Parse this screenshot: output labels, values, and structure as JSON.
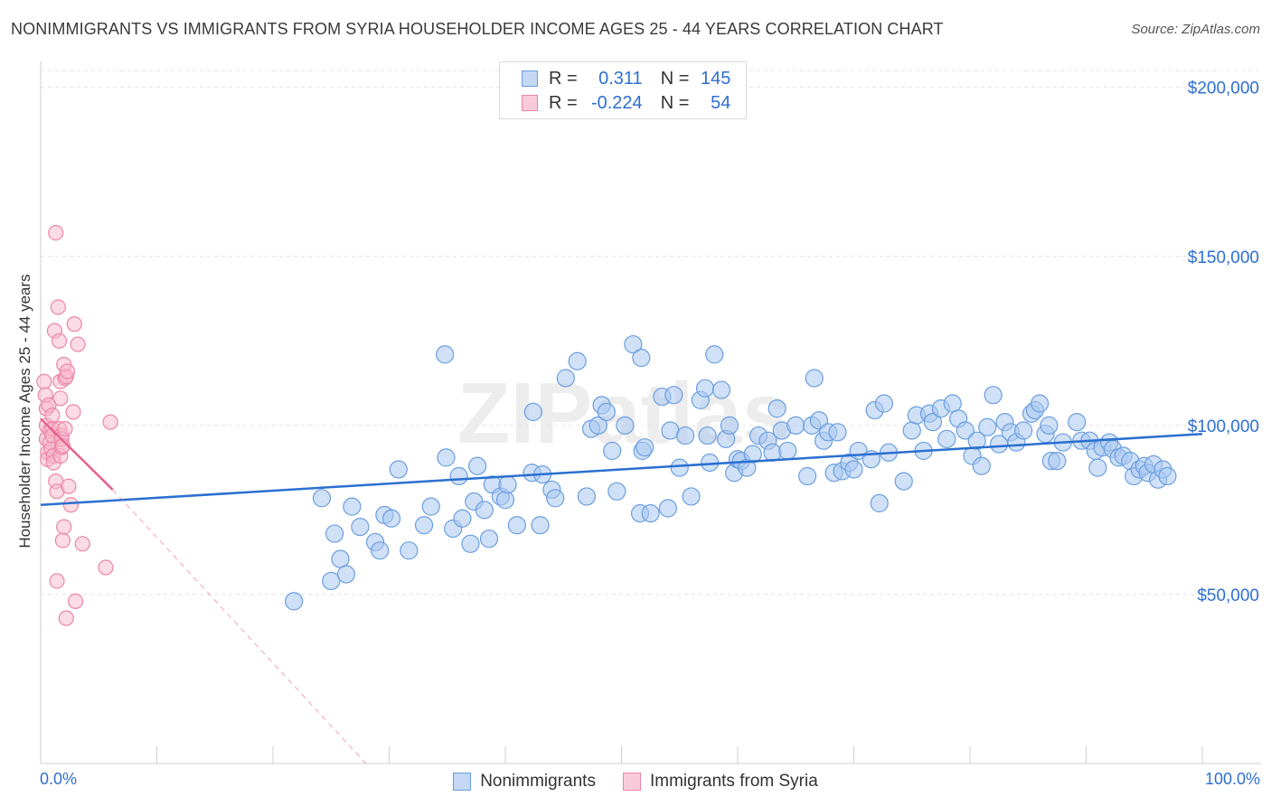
{
  "title": "NONIMMIGRANTS VS IMMIGRANTS FROM SYRIA HOUSEHOLDER INCOME AGES 25 - 44 YEARS CORRELATION CHART",
  "source": "Source: ZipAtlas.com",
  "watermark": "ZIPatlas",
  "legend_top": {
    "rows": [
      {
        "r_label": "R =",
        "r_value": "0.311",
        "n_label": "N =",
        "n_value": "145"
      },
      {
        "r_label": "R =",
        "r_value": "-0.224",
        "n_label": "N =",
        "n_value": "54"
      }
    ]
  },
  "legend_bottom": [
    "Nonimmigrants",
    "Immigrants from Syria"
  ],
  "colors": {
    "blue_fill": "#a9c8f0",
    "blue_stroke": "#6a9ee0",
    "blue_line": "#2a6fd0",
    "pink_fill": "#f7b8cc",
    "pink_stroke": "#ec86a6",
    "pink_line": "#e8638d",
    "label_blue": "#2d6fd2",
    "grid": "#e4e4e4"
  },
  "chart_data": {
    "type": "scatter",
    "title": "NONIMMIGRANTS VS IMMIGRANTS FROM SYRIA HOUSEHOLDER INCOME AGES 25 - 44 YEARS CORRELATION CHART",
    "xlabel": "",
    "ylabel": "Householder Income Ages 25 - 44 years",
    "xlim": [
      0,
      100
    ],
    "ylim": [
      0,
      205000
    ],
    "x_tick_labels": [
      "0.0%",
      "100.0%"
    ],
    "y_ticks": [
      50000,
      100000,
      150000,
      200000
    ],
    "y_tick_labels": [
      "$50,000",
      "$100,000",
      "$150,000",
      "$200,000"
    ],
    "grid": true,
    "legend_position": "top-center",
    "series": [
      {
        "name": "Nonimmigrants",
        "color": "#a9c8f0",
        "trend": {
          "x": [
            0,
            100
          ],
          "y": [
            76500,
            97500
          ]
        },
        "points": [
          [
            21.8,
            48000
          ],
          [
            24.2,
            78500
          ],
          [
            25.0,
            54000
          ],
          [
            25.3,
            68000
          ],
          [
            25.8,
            60500
          ],
          [
            26.3,
            56000
          ],
          [
            26.8,
            76000
          ],
          [
            27.5,
            70000
          ],
          [
            28.8,
            65500
          ],
          [
            29.2,
            63000
          ],
          [
            29.6,
            73500
          ],
          [
            30.2,
            72500
          ],
          [
            30.8,
            87000
          ],
          [
            31.7,
            63000
          ],
          [
            33.0,
            70500
          ],
          [
            33.6,
            76000
          ],
          [
            34.8,
            121000
          ],
          [
            34.9,
            90500
          ],
          [
            35.5,
            69500
          ],
          [
            36.0,
            85000
          ],
          [
            36.3,
            72500
          ],
          [
            37.0,
            65000
          ],
          [
            37.3,
            77500
          ],
          [
            37.6,
            88000
          ],
          [
            38.2,
            75000
          ],
          [
            38.6,
            66500
          ],
          [
            38.9,
            82500
          ],
          [
            39.6,
            79000
          ],
          [
            40.0,
            78000
          ],
          [
            40.2,
            82500
          ],
          [
            41.0,
            70500
          ],
          [
            42.3,
            86000
          ],
          [
            42.4,
            104000
          ],
          [
            43.0,
            70500
          ],
          [
            43.2,
            85500
          ],
          [
            44.0,
            81000
          ],
          [
            44.3,
            78500
          ],
          [
            45.2,
            114000
          ],
          [
            46.2,
            119000
          ],
          [
            47.0,
            79000
          ],
          [
            47.4,
            99000
          ],
          [
            48.0,
            100000
          ],
          [
            48.3,
            106000
          ],
          [
            48.7,
            104000
          ],
          [
            49.2,
            92500
          ],
          [
            49.6,
            80500
          ],
          [
            50.3,
            100000
          ],
          [
            51.0,
            124000
          ],
          [
            51.6,
            74000
          ],
          [
            51.7,
            120000
          ],
          [
            51.8,
            92500
          ],
          [
            52.0,
            93500
          ],
          [
            52.5,
            74000
          ],
          [
            53.5,
            108500
          ],
          [
            54.0,
            75500
          ],
          [
            54.2,
            98500
          ],
          [
            54.5,
            109000
          ],
          [
            55.0,
            87500
          ],
          [
            55.5,
            97000
          ],
          [
            56.0,
            79000
          ],
          [
            56.8,
            107500
          ],
          [
            57.2,
            111000
          ],
          [
            57.4,
            97000
          ],
          [
            57.6,
            89000
          ],
          [
            58.0,
            121000
          ],
          [
            58.6,
            110500
          ],
          [
            59.0,
            96000
          ],
          [
            59.3,
            100000
          ],
          [
            59.7,
            86000
          ],
          [
            60.0,
            90000
          ],
          [
            60.3,
            89500
          ],
          [
            60.8,
            87500
          ],
          [
            61.3,
            91500
          ],
          [
            61.8,
            97000
          ],
          [
            62.6,
            95500
          ],
          [
            63.0,
            92000
          ],
          [
            63.4,
            105000
          ],
          [
            63.8,
            98500
          ],
          [
            64.3,
            92500
          ],
          [
            65.0,
            100000
          ],
          [
            66.0,
            85000
          ],
          [
            66.4,
            100000
          ],
          [
            66.6,
            114000
          ],
          [
            67.0,
            101500
          ],
          [
            67.4,
            95500
          ],
          [
            67.8,
            98000
          ],
          [
            68.3,
            86000
          ],
          [
            68.6,
            98000
          ],
          [
            69.0,
            86500
          ],
          [
            69.6,
            89000
          ],
          [
            70.0,
            87000
          ],
          [
            70.4,
            92500
          ],
          [
            71.5,
            90000
          ],
          [
            71.8,
            104500
          ],
          [
            72.2,
            77000
          ],
          [
            72.6,
            106500
          ],
          [
            73.0,
            92000
          ],
          [
            74.3,
            83500
          ],
          [
            75.0,
            98500
          ],
          [
            75.4,
            103000
          ],
          [
            76.0,
            92500
          ],
          [
            76.5,
            103500
          ],
          [
            76.8,
            101000
          ],
          [
            77.5,
            105000
          ],
          [
            78.0,
            96000
          ],
          [
            78.5,
            106500
          ],
          [
            79.0,
            102000
          ],
          [
            79.6,
            98500
          ],
          [
            80.2,
            91000
          ],
          [
            80.6,
            95500
          ],
          [
            81.0,
            88000
          ],
          [
            81.5,
            99500
          ],
          [
            82.0,
            109000
          ],
          [
            82.5,
            94500
          ],
          [
            83.0,
            101000
          ],
          [
            83.5,
            98000
          ],
          [
            84.0,
            95000
          ],
          [
            84.6,
            98500
          ],
          [
            85.3,
            103500
          ],
          [
            85.6,
            104500
          ],
          [
            86.0,
            106500
          ],
          [
            86.5,
            97500
          ],
          [
            86.8,
            100000
          ],
          [
            87.0,
            89500
          ],
          [
            87.5,
            89500
          ],
          [
            88.0,
            95000
          ],
          [
            89.2,
            101000
          ],
          [
            89.6,
            95500
          ],
          [
            90.3,
            95500
          ],
          [
            90.8,
            92500
          ],
          [
            91.0,
            87500
          ],
          [
            91.4,
            93500
          ],
          [
            92.0,
            95000
          ],
          [
            92.3,
            93000
          ],
          [
            92.8,
            90500
          ],
          [
            93.2,
            91000
          ],
          [
            93.8,
            89500
          ],
          [
            94.1,
            85000
          ],
          [
            94.6,
            87000
          ],
          [
            95.0,
            88000
          ],
          [
            95.3,
            86000
          ],
          [
            95.8,
            88500
          ],
          [
            96.2,
            84000
          ],
          [
            96.6,
            87000
          ],
          [
            97.0,
            85000
          ]
        ]
      },
      {
        "name": "Immigrants from Syria",
        "color": "#f7b8cc",
        "trend": {
          "x": [
            0,
            6.2
          ],
          "y": [
            102000,
            81000
          ]
        },
        "trend_extended": {
          "x": [
            6.2,
            28
          ],
          "y": [
            81000,
            0
          ]
        },
        "points": [
          [
            0.3,
            113000
          ],
          [
            0.4,
            109000
          ],
          [
            0.5,
            105000
          ],
          [
            0.5,
            100000
          ],
          [
            0.5,
            96000
          ],
          [
            0.6,
            92000
          ],
          [
            0.6,
            90000
          ],
          [
            0.7,
            106000
          ],
          [
            0.8,
            98500
          ],
          [
            0.8,
            95000
          ],
          [
            0.9,
            93000
          ],
          [
            1.0,
            103000
          ],
          [
            1.0,
            99000
          ],
          [
            1.0,
            97000
          ],
          [
            1.1,
            91000
          ],
          [
            1.1,
            89000
          ],
          [
            1.2,
            128000
          ],
          [
            1.3,
            157000
          ],
          [
            1.3,
            83500
          ],
          [
            1.4,
            80500
          ],
          [
            1.4,
            54000
          ],
          [
            1.5,
            135000
          ],
          [
            1.6,
            125000
          ],
          [
            1.6,
            99000
          ],
          [
            1.7,
            113000
          ],
          [
            1.7,
            108000
          ],
          [
            1.7,
            91000
          ],
          [
            1.8,
            97000
          ],
          [
            1.8,
            93500
          ],
          [
            1.8,
            96000
          ],
          [
            1.9,
            66000
          ],
          [
            1.9,
            94000
          ],
          [
            2.0,
            70000
          ],
          [
            2.0,
            118000
          ],
          [
            2.1,
            114000
          ],
          [
            2.1,
            99000
          ],
          [
            2.2,
            114500
          ],
          [
            2.2,
            43000
          ],
          [
            2.3,
            116000
          ],
          [
            2.4,
            82000
          ],
          [
            2.6,
            76500
          ],
          [
            2.8,
            104000
          ],
          [
            2.9,
            130000
          ],
          [
            3.0,
            48000
          ],
          [
            3.2,
            124000
          ],
          [
            3.6,
            65000
          ],
          [
            5.6,
            58000
          ],
          [
            6.0,
            101000
          ]
        ]
      }
    ]
  }
}
